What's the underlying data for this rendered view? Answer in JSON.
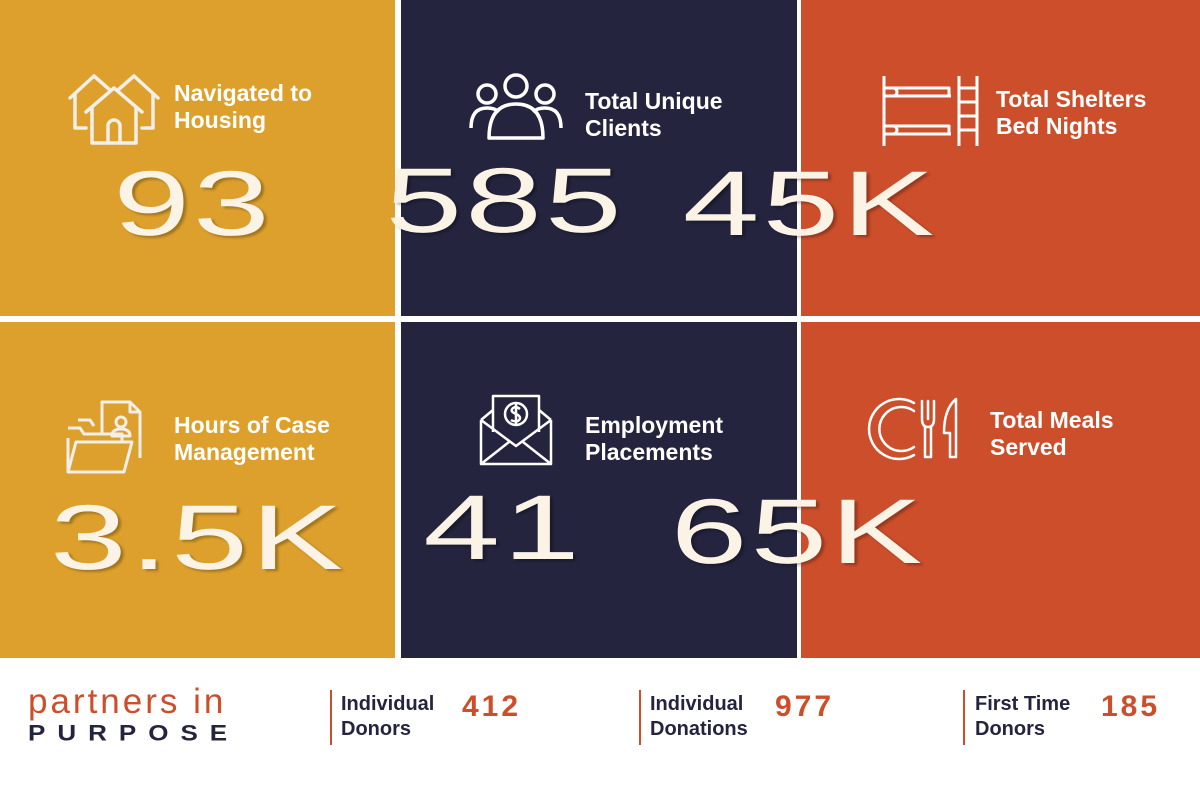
{
  "colors": {
    "gold": "#DDA02C",
    "navy": "#24243E",
    "orange": "#CC4E2B"
  },
  "tiles": [
    {
      "icon": "houses-icon",
      "label_line1": "Navigated to",
      "label_line2": "Housing",
      "value": "93"
    },
    {
      "icon": "group-of-people-icon",
      "label_line1": "Total Unique",
      "label_line2": "Clients",
      "value": "585"
    },
    {
      "icon": "bunk-bed-icon",
      "label_line1": "Total Shelters",
      "label_line2": "Bed Nights",
      "value": "45K"
    },
    {
      "icon": "folder-with-document-icon",
      "label_line1": "Hours of Case",
      "label_line2": "Management",
      "value": "3.5K"
    },
    {
      "icon": "envelope-with-dollar-icon",
      "label_line1": "Employment",
      "label_line2": "Placements",
      "value": "41"
    },
    {
      "icon": "plate-fork-knife-icon",
      "label_line1": "Total Meals",
      "label_line2": "Served",
      "value": "65K"
    }
  ],
  "footer": {
    "logo_line1": "partners in",
    "logo_line2": "PURPOSE",
    "stats": [
      {
        "label_line1": "Individual",
        "label_line2": "Donors",
        "value": "412"
      },
      {
        "label_line1": "Individual",
        "label_line2": "Donations",
        "value": "977"
      },
      {
        "label_line1": "First Time",
        "label_line2": "Donors",
        "value": "185"
      }
    ]
  }
}
